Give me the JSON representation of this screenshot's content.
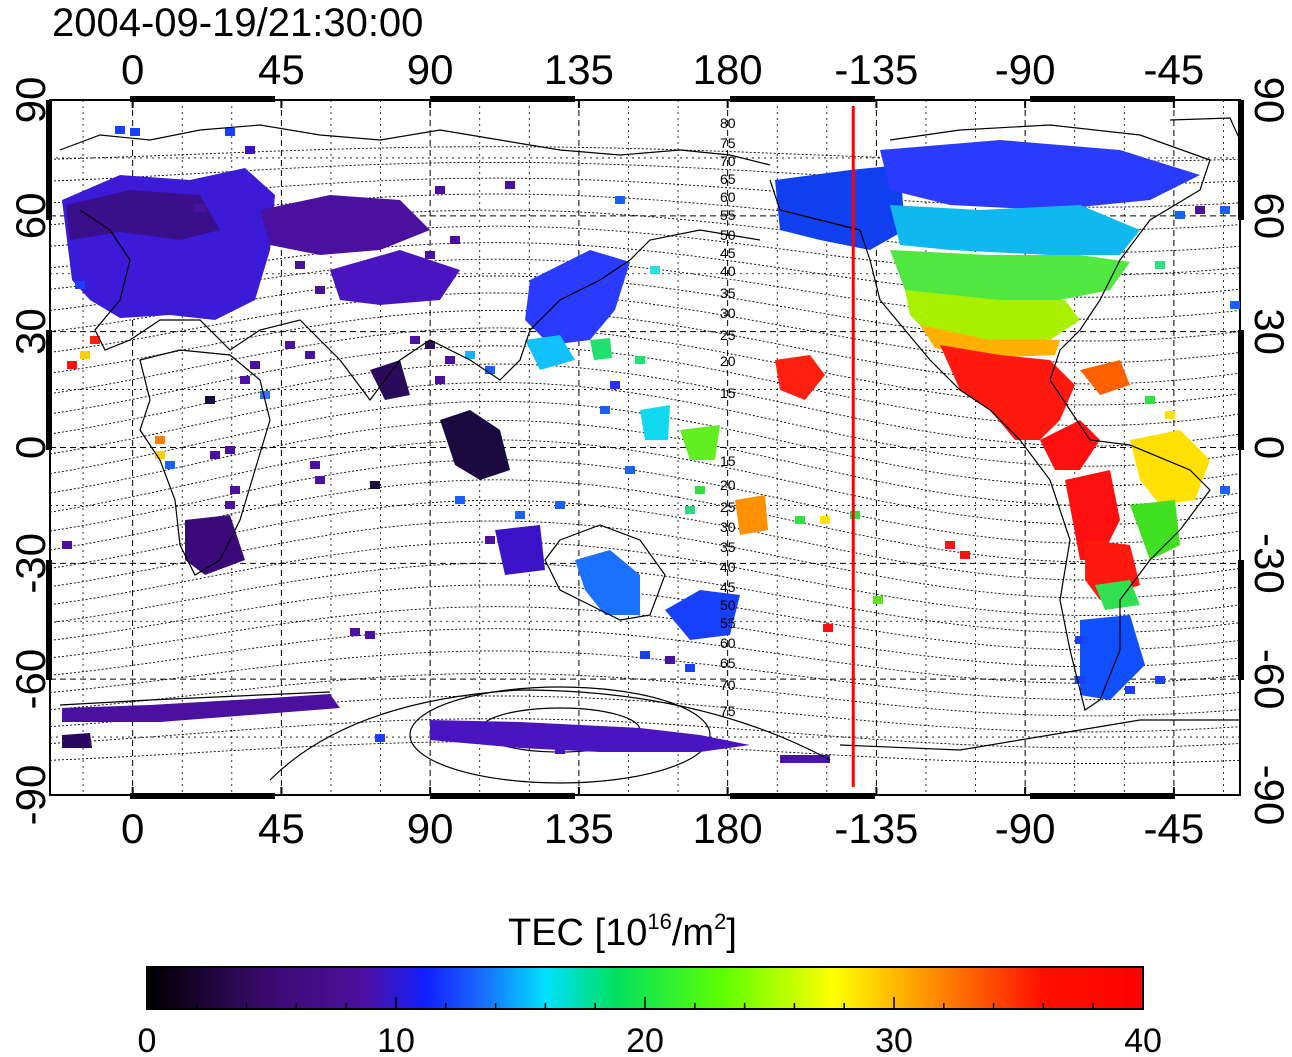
{
  "title": "2004-09-19/21:30:00",
  "map": {
    "lon_ticks": [
      "0",
      "45",
      "90",
      "135",
      "180",
      "-135",
      "-90",
      "-45"
    ],
    "lat_ticks": [
      "90",
      "60",
      "30",
      "0",
      "-30",
      "-60",
      "-90"
    ],
    "lon_range": [
      -25,
      335
    ],
    "lat_range": [
      -90,
      90
    ],
    "grid": true,
    "terminator_lon": 218,
    "contour_labels_north": [
      "80",
      "75",
      "70",
      "65",
      "60",
      "55",
      "50",
      "45",
      "40",
      "35",
      "30",
      "25",
      "20",
      "15"
    ],
    "contour_labels_south": [
      "15",
      "20",
      "25",
      "30",
      "35",
      "40",
      "45",
      "50",
      "55",
      "60",
      "65",
      "70",
      "75"
    ]
  },
  "colorbar": {
    "title_main": "TEC  [10",
    "title_exp1": "16",
    "title_mid": "/m",
    "title_exp2": "2",
    "title_end": "]",
    "ticks": [
      "0",
      "10",
      "20",
      "30",
      "40"
    ],
    "range": [
      0,
      40
    ],
    "colormap": [
      "#000000",
      "#3a0a6e",
      "#4a10a0",
      "#1020ff",
      "#1a60ff",
      "#00e0ff",
      "#00e060",
      "#60ff00",
      "#ffff00",
      "#ff8000",
      "#ff1000",
      "#ff0000"
    ]
  }
}
